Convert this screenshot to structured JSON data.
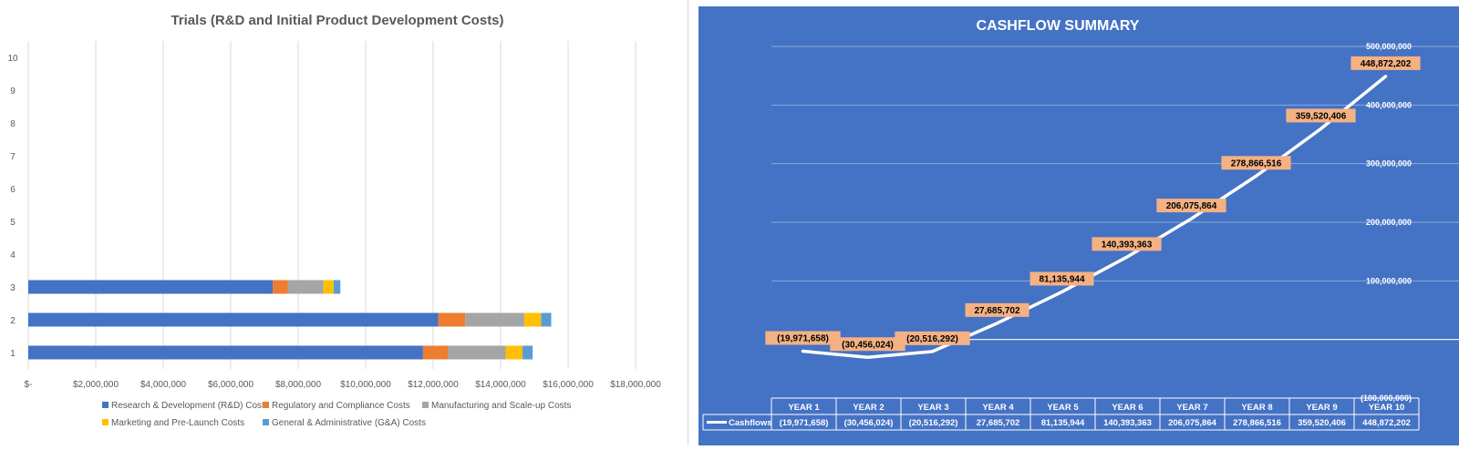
{
  "chart_data": [
    {
      "type": "bar",
      "orientation": "horizontal",
      "stacked": true,
      "title": "Trials (R&D and Initial Product Development Costs)",
      "categories": [
        "1",
        "2",
        "3",
        "4",
        "5",
        "6",
        "7",
        "8",
        "9",
        "10"
      ],
      "x_tick_labels": [
        "$-",
        "$2,000,000",
        "$4,000,000",
        "$6,000,000",
        "$8,000,000",
        "$10,000,000",
        "$12,000,000",
        "$14,000,000",
        "$16,000,000",
        "$18,000,000"
      ],
      "xlim": [
        0,
        18000000
      ],
      "grid": "vertical",
      "legend_position": "bottom",
      "series": [
        {
          "name": "Research & Development (R&D) Costs",
          "color": "#4472c4",
          "values": [
            11700000,
            12150000,
            7250000,
            0,
            0,
            0,
            0,
            0,
            0,
            0
          ]
        },
        {
          "name": "Regulatory and Compliance Costs",
          "color": "#ed7d31",
          "values": [
            750000,
            800000,
            450000,
            0,
            0,
            0,
            0,
            0,
            0,
            0
          ]
        },
        {
          "name": "Manufacturing and Scale-up Costs",
          "color": "#a5a5a5",
          "values": [
            1700000,
            1750000,
            1050000,
            0,
            0,
            0,
            0,
            0,
            0,
            0
          ]
        },
        {
          "name": "Marketing and Pre-Launch Costs",
          "color": "#ffc000",
          "values": [
            500000,
            500000,
            300000,
            0,
            0,
            0,
            0,
            0,
            0,
            0
          ]
        },
        {
          "name": "General & Administrative (G&A) Costs",
          "color": "#5b9bd5",
          "values": [
            300000,
            300000,
            200000,
            0,
            0,
            0,
            0,
            0,
            0,
            0
          ]
        }
      ]
    },
    {
      "type": "line",
      "title": "CASHFLOW SUMMARY",
      "categories": [
        "YEAR 1",
        "YEAR 2",
        "YEAR 3",
        "YEAR 4",
        "YEAR 5",
        "YEAR 6",
        "YEAR 7",
        "YEAR 8",
        "YEAR 9",
        "YEAR 10"
      ],
      "ylim": [
        -100000000,
        500000000
      ],
      "y_tick_labels": [
        "500,000,000",
        "400,000,000",
        "300,000,000",
        "200,000,000",
        "100,000,000",
        "",
        "(100,000,000)"
      ],
      "y_axis_side": "right",
      "grid": "horizontal",
      "background_color": "#4472c4",
      "line_color": "#ffffff",
      "label_fill_color": "#f4b183",
      "series": [
        {
          "name": "Cashflows",
          "values": [
            -19971658,
            -30456024,
            -20516292,
            27685702,
            81135944,
            140393363,
            206075864,
            278866516,
            359520406,
            448872202
          ],
          "labels": [
            "(19,971,658)",
            "(30,456,024)",
            "(20,516,292)",
            "27,685,702",
            "81,135,944",
            "140,393,363",
            "206,075,864",
            "278,866,516",
            "359,520,406",
            "448,872,202"
          ]
        }
      ]
    }
  ]
}
